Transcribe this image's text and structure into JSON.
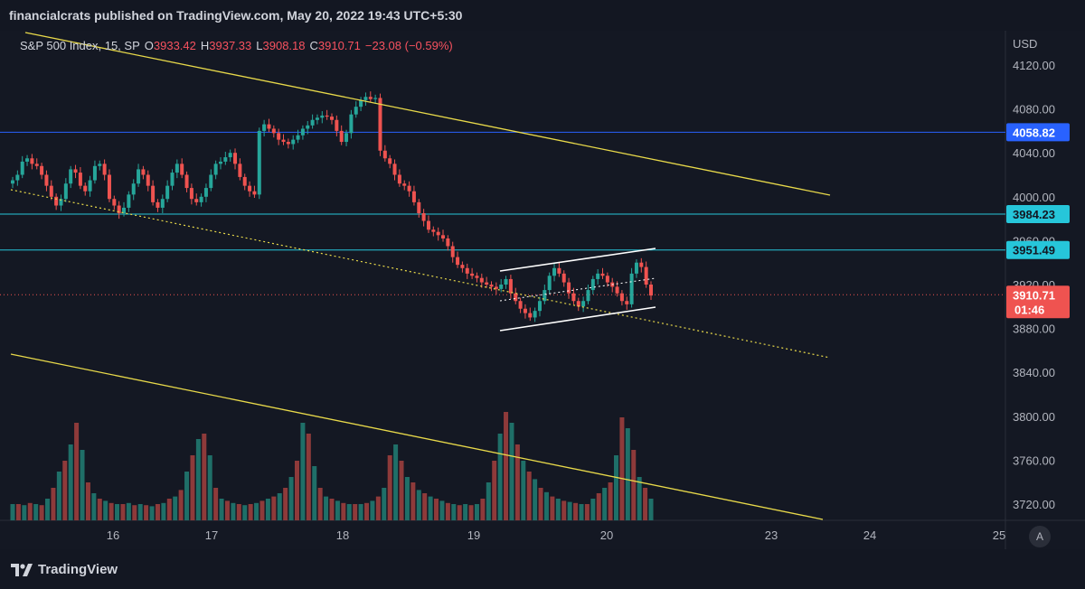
{
  "header": {
    "published_text": "financialcrats published on TradingView.com, May 20, 2022 19:43 UTC+5:30"
  },
  "legend": {
    "symbol": "S&P 500 Index, 15, SP",
    "open_label": "O",
    "open": "3933.42",
    "high_label": "H",
    "high": "3937.33",
    "low_label": "L",
    "low": "3908.18",
    "close_label": "C",
    "close": "3910.71",
    "change": "−23.08 (−0.59%)"
  },
  "footer": {
    "brand": "TradingView",
    "auto_button": "A"
  },
  "colors": {
    "background": "#131722",
    "up": "#26a69a",
    "down": "#ef5350",
    "trendline": "#e8d94a",
    "blue_line": "#2962ff",
    "cyan_line": "#26c6da",
    "channel": "#ffffff"
  },
  "chart_data": {
    "type": "candlestick",
    "currency": "USD",
    "y_ticks": [
      "4120.00",
      "4080.00",
      "4040.00",
      "4000.00",
      "3960.00",
      "3920.00",
      "3880.00",
      "3840.00",
      "3800.00",
      "3760.00",
      "3720.00"
    ],
    "x_ticks": [
      "16",
      "17",
      "18",
      "19",
      "20",
      "23",
      "24",
      "25"
    ],
    "price_tags": [
      {
        "value": "4058.82",
        "style": "blue"
      },
      {
        "value": "3984.23",
        "style": "cyan"
      },
      {
        "value": "3951.49",
        "style": "cyan"
      },
      {
        "value": "3910.71",
        "style": "red",
        "countdown": "01:46"
      }
    ],
    "horizontal_levels": [
      4058.82,
      3984.23,
      3951.49,
      3910.71
    ],
    "candles_close_path": [
      4015,
      4020,
      4032,
      4035,
      4030,
      4028,
      4020,
      4010,
      4000,
      3992,
      3998,
      4012,
      4025,
      4022,
      4010,
      4005,
      4015,
      4028,
      4030,
      4020,
      3998,
      3992,
      3985,
      3990,
      4002,
      4012,
      4025,
      4020,
      4010,
      3995,
      3990,
      3998,
      4010,
      4022,
      4030,
      4020,
      4008,
      3998,
      3995,
      4000,
      4008,
      4020,
      4030,
      4032,
      4036,
      4040,
      4030,
      4018,
      4010,
      4005,
      4002,
      4060,
      4066,
      4062,
      4058,
      4052,
      4050,
      4048,
      4052,
      4056,
      4062,
      4065,
      4070,
      4072,
      4074,
      4073,
      4070,
      4060,
      4050,
      4058,
      4075,
      4082,
      4088,
      4091,
      4089,
      4090,
      4042,
      4035,
      4030,
      4020,
      4012,
      4010,
      4005,
      3995,
      3985,
      3978,
      3970,
      3968,
      3965,
      3962,
      3955,
      3945,
      3938,
      3935,
      3930,
      3928,
      3926,
      3922,
      3920,
      3918,
      3916,
      3920,
      3925,
      3912,
      3905,
      3898,
      3894,
      3890,
      3896,
      3905,
      3915,
      3928,
      3935,
      3930,
      3922,
      3912,
      3905,
      3900,
      3905,
      3915,
      3925,
      3930,
      3928,
      3922,
      3918,
      3912,
      3905,
      3902,
      3930,
      3940,
      3936,
      3920,
      3910
    ],
    "volume_relative": [
      0.15,
      0.15,
      0.14,
      0.16,
      0.15,
      0.14,
      0.2,
      0.3,
      0.45,
      0.55,
      0.7,
      0.9,
      0.65,
      0.35,
      0.25,
      0.2,
      0.18,
      0.16,
      0.15,
      0.15,
      0.16,
      0.14,
      0.15,
      0.14,
      0.13,
      0.15,
      0.16,
      0.2,
      0.22,
      0.28,
      0.45,
      0.6,
      0.75,
      0.8,
      0.6,
      0.3,
      0.2,
      0.18,
      0.16,
      0.15,
      0.14,
      0.15,
      0.16,
      0.18,
      0.2,
      0.22,
      0.25,
      0.3,
      0.4,
      0.55,
      0.9,
      0.8,
      0.5,
      0.3,
      0.22,
      0.2,
      0.18,
      0.16,
      0.15,
      0.15,
      0.15,
      0.16,
      0.18,
      0.22,
      0.3,
      0.6,
      0.7,
      0.55,
      0.4,
      0.35,
      0.28,
      0.25,
      0.22,
      0.2,
      0.18,
      0.16,
      0.15,
      0.14,
      0.15,
      0.14,
      0.15,
      0.2,
      0.35,
      0.55,
      0.8,
      1.0,
      0.9,
      0.7,
      0.55,
      0.45,
      0.38,
      0.3,
      0.26,
      0.22,
      0.2,
      0.18,
      0.17,
      0.16,
      0.15,
      0.15,
      0.2,
      0.25,
      0.3,
      0.35,
      0.6,
      0.95,
      0.85,
      0.65,
      0.4,
      0.3,
      0.2
    ]
  }
}
